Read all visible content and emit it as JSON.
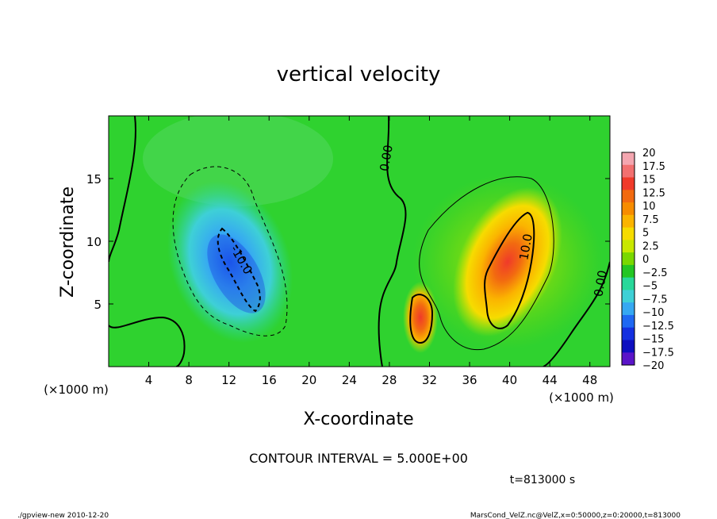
{
  "chart_data": {
    "type": "heatmap",
    "title": "vertical velocity",
    "xlabel": "X-coordinate",
    "ylabel": "Z-coordinate",
    "x_unit_left": "(×1000 m)",
    "x_unit_right": "(×1000 m)",
    "xlim": [
      0,
      50
    ],
    "ylim": [
      0,
      20
    ],
    "x_ticks": [
      "4",
      "8",
      "12",
      "16",
      "20",
      "24",
      "28",
      "32",
      "36",
      "40",
      "44",
      "48"
    ],
    "y_ticks": [
      "5",
      "10",
      "15"
    ],
    "colorbar_labels": [
      "20",
      "17.5",
      "15",
      "12.5",
      "10",
      "7.5",
      "5",
      "2.5",
      "0",
      "−2.5",
      "−5",
      "−7.5",
      "−10",
      "−12.5",
      "−15",
      "−17.5",
      "−20"
    ],
    "colorbar_colors": [
      "#f4a6b0",
      "#f27070",
      "#f03a2a",
      "#f26a10",
      "#f78c00",
      "#fbb400",
      "#f6dc00",
      "#c8e800",
      "#7ad800",
      "#23c623",
      "#28d89a",
      "#3ed0d6",
      "#36a8f2",
      "#1f68f2",
      "#1430e0",
      "#0e0fc0",
      "#5a14c8"
    ],
    "contour_interval_text": "CONTOUR INTERVAL = 5.000E+00",
    "contour_labels": [
      "0.00",
      "-10.0",
      "10.0",
      "0.00"
    ],
    "features": [
      {
        "name": "downdraft core",
        "x": 13,
        "z": 8.5,
        "value": -13
      },
      {
        "name": "updraft core",
        "x": 40.5,
        "z": 7.5,
        "value": 13
      },
      {
        "name": "secondary updraft",
        "x": 31,
        "z": 4,
        "value": 11
      }
    ]
  },
  "footer": {
    "time": "t=813000 s",
    "program": "./gpview-new   2010-12-20",
    "source": "MarsCond_VelZ.nc@VelZ,x=0:50000,z=0:20000,t=813000"
  }
}
